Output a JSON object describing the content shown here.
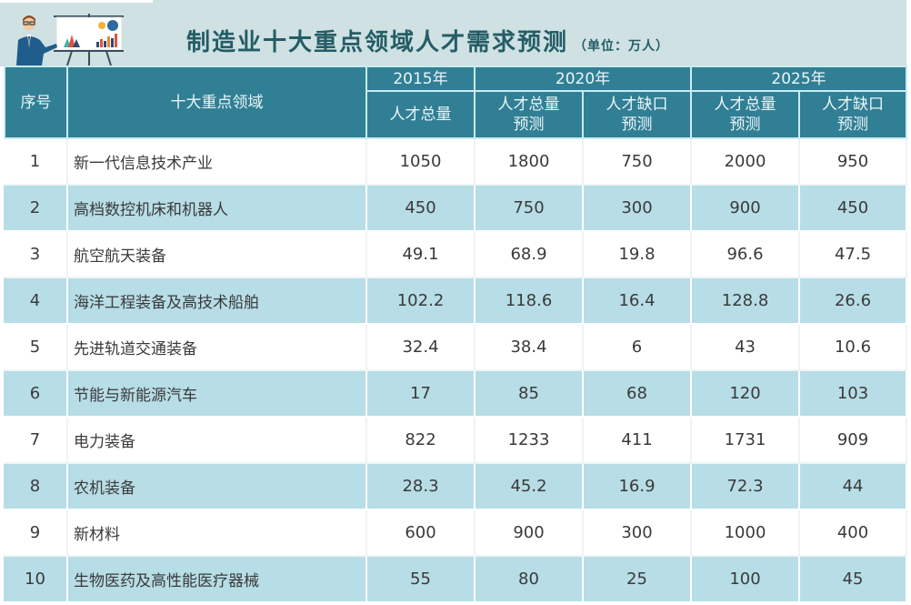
{
  "header": {
    "title": "制造业十大重点领域人才需求预测",
    "unit": "（单位：万人）",
    "illustration": "presenter-with-chart-board-icon"
  },
  "table": {
    "columns": {
      "index": "序号",
      "field": "十大重点领域",
      "y2015": "2015年",
      "y2020": "2020年",
      "y2025": "2025年",
      "y2015_total": "人才总量",
      "y2020_total": "人才总量预测",
      "y2020_gap": "人才缺口预测",
      "y2025_total": "人才总量预测",
      "y2025_gap": "人才缺口预测"
    },
    "rows": [
      {
        "idx": "1",
        "field": "新一代信息技术产业",
        "t2015": "1050",
        "t2020": "1800",
        "g2020": "750",
        "t2025": "2000",
        "g2025": "950"
      },
      {
        "idx": "2",
        "field": "高档数控机床和机器人",
        "t2015": "450",
        "t2020": "750",
        "g2020": "300",
        "t2025": "900",
        "g2025": "450"
      },
      {
        "idx": "3",
        "field": "航空航天装备",
        "t2015": "49.1",
        "t2020": "68.9",
        "g2020": "19.8",
        "t2025": "96.6",
        "g2025": "47.5"
      },
      {
        "idx": "4",
        "field": "海洋工程装备及高技术船舶",
        "t2015": "102.2",
        "t2020": "118.6",
        "g2020": "16.4",
        "t2025": "128.8",
        "g2025": "26.6"
      },
      {
        "idx": "5",
        "field": "先进轨道交通装备",
        "t2015": "32.4",
        "t2020": "38.4",
        "g2020": "6",
        "t2025": "43",
        "g2025": "10.6"
      },
      {
        "idx": "6",
        "field": "节能与新能源汽车",
        "t2015": "17",
        "t2020": "85",
        "g2020": "68",
        "t2025": "120",
        "g2025": "103"
      },
      {
        "idx": "7",
        "field": "电力装备",
        "t2015": "822",
        "t2020": "1233",
        "g2020": "411",
        "t2025": "1731",
        "g2025": "909"
      },
      {
        "idx": "8",
        "field": "农机装备",
        "t2015": "28.3",
        "t2020": "45.2",
        "g2020": "16.9",
        "t2025": "72.3",
        "g2025": "44"
      },
      {
        "idx": "9",
        "field": "新材料",
        "t2015": "600",
        "t2020": "900",
        "g2020": "300",
        "t2025": "1000",
        "g2025": "400"
      },
      {
        "idx": "10",
        "field": "生物医药及高性能医疗器械",
        "t2015": "55",
        "t2020": "80",
        "g2020": "25",
        "t2025": "100",
        "g2025": "45"
      }
    ]
  },
  "colors": {
    "header_fill": "#317f95",
    "header_text": "#eaf6f8",
    "alt_row": "#b7dde6",
    "title_text": "#245d66",
    "title_band": "#cfe1e3"
  }
}
